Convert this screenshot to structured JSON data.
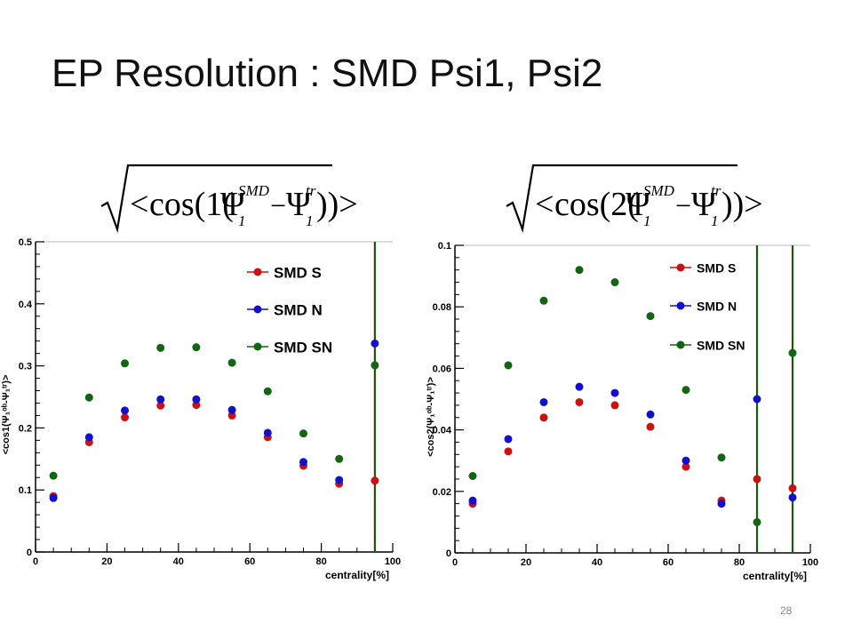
{
  "slide": {
    "title": "EP Resolution : SMD Psi1, Psi2",
    "page_number": "28"
  },
  "formulas": [
    {
      "prefix": "cos(1(",
      "psi": "Ψ",
      "sub1": "1",
      "sup1": "SMD",
      "minus": "−",
      "sub2": "1",
      "sup2": "tr",
      "close": "))>"
    },
    {
      "prefix": "cos(2(",
      "psi": "Ψ",
      "sub1": "1",
      "sup1": "SMD",
      "minus": "−",
      "sub2": "1",
      "sup2": "tr",
      "close": "))>"
    }
  ],
  "colors": {
    "SMD S": "#cc1111",
    "SMD N": "#1111cc",
    "SMD SN": "#116611"
  },
  "chart_data": [
    {
      "type": "scatter",
      "title": "",
      "xlabel": "centrality[%]",
      "ylabel": "<cos1(Ψ₁ᵒᵇ-Ψ₁ᵗʳ)>",
      "xlim": [
        0,
        100
      ],
      "ylim": [
        0,
        0.5
      ],
      "xticks": [
        "0",
        "20",
        "40",
        "60",
        "80",
        "100"
      ],
      "yticks": [
        "0",
        "0.1",
        "0.2",
        "0.3",
        "0.4",
        "0.5"
      ],
      "legend_position": "top-right",
      "x": [
        5,
        15,
        25,
        35,
        45,
        55,
        65,
        75,
        85,
        95
      ],
      "series": [
        {
          "name": "SMD S",
          "values": [
            0.09,
            0.177,
            0.217,
            0.236,
            0.237,
            0.22,
            0.185,
            0.139,
            0.11,
            0.115
          ]
        },
        {
          "name": "SMD N",
          "values": [
            0.087,
            0.185,
            0.228,
            0.246,
            0.246,
            0.229,
            0.192,
            0.145,
            0.116,
            0.336
          ]
        },
        {
          "name": "SMD SN",
          "values": [
            0.123,
            0.249,
            0.304,
            0.329,
            0.33,
            0.305,
            0.259,
            0.191,
            0.15,
            0.301
          ]
        }
      ]
    },
    {
      "type": "scatter",
      "title": "",
      "xlabel": "centrality[%]",
      "ylabel": "<cos2(Ψ₁ᵒᵇ-Ψ₁ᵗʳ)>",
      "xlim": [
        0,
        100
      ],
      "ylim": [
        0,
        0.1
      ],
      "xticks": [
        "0",
        "20",
        "40",
        "60",
        "80",
        "100"
      ],
      "yticks": [
        "0",
        "0.02",
        "0.04",
        "0.06",
        "0.08",
        "0.1"
      ],
      "legend_position": "top-right",
      "x": [
        5,
        15,
        25,
        35,
        45,
        55,
        65,
        75,
        85,
        95
      ],
      "series": [
        {
          "name": "SMD S",
          "values": [
            0.016,
            0.033,
            0.044,
            0.049,
            0.048,
            0.041,
            0.028,
            0.017,
            0.024,
            0.021
          ]
        },
        {
          "name": "SMD N",
          "values": [
            0.017,
            0.037,
            0.049,
            0.054,
            0.052,
            0.045,
            0.03,
            0.016,
            0.05,
            0.018
          ]
        },
        {
          "name": "SMD SN",
          "values": [
            0.025,
            0.061,
            0.082,
            0.092,
            0.088,
            0.077,
            0.053,
            0.031,
            0.01,
            0.065
          ]
        }
      ]
    }
  ]
}
